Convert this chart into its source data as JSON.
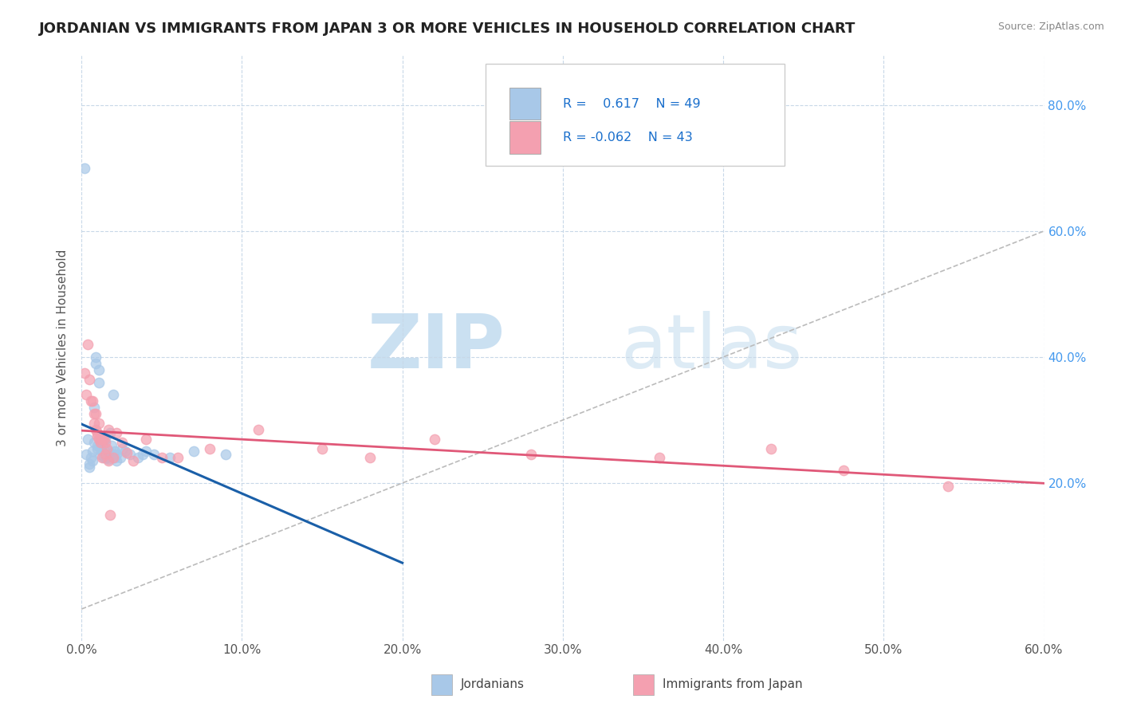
{
  "title": "JORDANIAN VS IMMIGRANTS FROM JAPAN 3 OR MORE VEHICLES IN HOUSEHOLD CORRELATION CHART",
  "source": "Source: ZipAtlas.com",
  "ylabel": "3 or more Vehicles in Household",
  "x_tick_labels": [
    "0.0%",
    "10.0%",
    "20.0%",
    "30.0%",
    "40.0%",
    "50.0%",
    "60.0%"
  ],
  "x_tick_values": [
    0.0,
    0.1,
    0.2,
    0.3,
    0.4,
    0.5,
    0.6
  ],
  "y_tick_labels": [
    "20.0%",
    "40.0%",
    "60.0%",
    "80.0%"
  ],
  "y_tick_values": [
    0.2,
    0.4,
    0.6,
    0.8
  ],
  "xlim": [
    0.0,
    0.6
  ],
  "ylim": [
    -0.05,
    0.88
  ],
  "legend_labels": [
    "Jordanians",
    "Immigrants from Japan"
  ],
  "r_blue": "0.617",
  "n_blue": "49",
  "r_pink": "-0.062",
  "n_pink": "43",
  "blue_color": "#a8c8e8",
  "pink_color": "#f4a0b0",
  "blue_line_color": "#1a5fa8",
  "pink_line_color": "#e05878",
  "blue_scatter": [
    [
      0.002,
      0.7
    ],
    [
      0.003,
      0.245
    ],
    [
      0.004,
      0.27
    ],
    [
      0.005,
      0.23
    ],
    [
      0.005,
      0.225
    ],
    [
      0.006,
      0.24
    ],
    [
      0.007,
      0.25
    ],
    [
      0.007,
      0.235
    ],
    [
      0.008,
      0.32
    ],
    [
      0.008,
      0.265
    ],
    [
      0.009,
      0.4
    ],
    [
      0.009,
      0.39
    ],
    [
      0.01,
      0.26
    ],
    [
      0.01,
      0.255
    ],
    [
      0.011,
      0.36
    ],
    [
      0.011,
      0.38
    ],
    [
      0.012,
      0.245
    ],
    [
      0.012,
      0.26
    ],
    [
      0.013,
      0.25
    ],
    [
      0.013,
      0.26
    ],
    [
      0.014,
      0.27
    ],
    [
      0.014,
      0.24
    ],
    [
      0.015,
      0.27
    ],
    [
      0.015,
      0.24
    ],
    [
      0.016,
      0.24
    ],
    [
      0.016,
      0.24
    ],
    [
      0.017,
      0.238
    ],
    [
      0.017,
      0.25
    ],
    [
      0.018,
      0.245
    ],
    [
      0.018,
      0.28
    ],
    [
      0.019,
      0.26
    ],
    [
      0.019,
      0.245
    ],
    [
      0.02,
      0.245
    ],
    [
      0.02,
      0.34
    ],
    [
      0.021,
      0.24
    ],
    [
      0.021,
      0.25
    ],
    [
      0.022,
      0.235
    ],
    [
      0.022,
      0.245
    ],
    [
      0.024,
      0.24
    ],
    [
      0.025,
      0.255
    ],
    [
      0.027,
      0.25
    ],
    [
      0.03,
      0.245
    ],
    [
      0.035,
      0.24
    ],
    [
      0.038,
      0.245
    ],
    [
      0.04,
      0.25
    ],
    [
      0.045,
      0.245
    ],
    [
      0.055,
      0.24
    ],
    [
      0.07,
      0.25
    ],
    [
      0.09,
      0.245
    ]
  ],
  "pink_scatter": [
    [
      0.002,
      0.375
    ],
    [
      0.003,
      0.34
    ],
    [
      0.004,
      0.42
    ],
    [
      0.005,
      0.365
    ],
    [
      0.006,
      0.33
    ],
    [
      0.007,
      0.33
    ],
    [
      0.008,
      0.31
    ],
    [
      0.008,
      0.295
    ],
    [
      0.009,
      0.31
    ],
    [
      0.009,
      0.285
    ],
    [
      0.01,
      0.28
    ],
    [
      0.01,
      0.275
    ],
    [
      0.011,
      0.295
    ],
    [
      0.011,
      0.27
    ],
    [
      0.012,
      0.275
    ],
    [
      0.012,
      0.265
    ],
    [
      0.013,
      0.27
    ],
    [
      0.013,
      0.24
    ],
    [
      0.014,
      0.27
    ],
    [
      0.015,
      0.265
    ],
    [
      0.015,
      0.245
    ],
    [
      0.016,
      0.255
    ],
    [
      0.017,
      0.235
    ],
    [
      0.017,
      0.285
    ],
    [
      0.018,
      0.15
    ],
    [
      0.02,
      0.24
    ],
    [
      0.022,
      0.28
    ],
    [
      0.025,
      0.265
    ],
    [
      0.028,
      0.248
    ],
    [
      0.032,
      0.235
    ],
    [
      0.04,
      0.27
    ],
    [
      0.05,
      0.24
    ],
    [
      0.06,
      0.24
    ],
    [
      0.08,
      0.255
    ],
    [
      0.11,
      0.285
    ],
    [
      0.15,
      0.255
    ],
    [
      0.18,
      0.24
    ],
    [
      0.22,
      0.27
    ],
    [
      0.28,
      0.245
    ],
    [
      0.36,
      0.24
    ],
    [
      0.43,
      0.255
    ],
    [
      0.475,
      0.22
    ],
    [
      0.54,
      0.195
    ]
  ],
  "watermark_zip": "ZIP",
  "watermark_atlas": "atlas",
  "background_color": "#ffffff",
  "grid_color": "#c8d8e8",
  "title_fontsize": 13,
  "axis_fontsize": 11,
  "tick_fontsize": 11
}
